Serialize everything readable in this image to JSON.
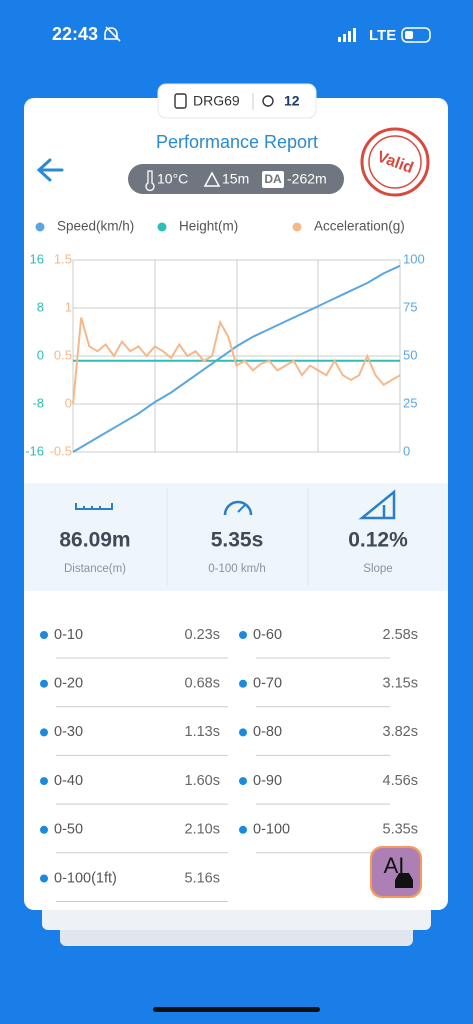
{
  "status": {
    "time": "22:43",
    "network": "LTE"
  },
  "header": {
    "device": "DRG69",
    "satellites": "12",
    "title": "Performance Report",
    "stamp": "Valid",
    "temperature": "10°C",
    "altitude": "15m",
    "da_label": "DA",
    "density_altitude": "-262m"
  },
  "chart_data": {
    "type": "line",
    "series": [
      {
        "name": "Speed(km/h)",
        "color": "#5aa7e0",
        "axis": "y2",
        "values": [
          0,
          5,
          10,
          15,
          20,
          26,
          31,
          37,
          43,
          49,
          55,
          60,
          64,
          68,
          72,
          76,
          80,
          84,
          88,
          93,
          97
        ]
      },
      {
        "name": "Height(m)",
        "color": "#2bbfb7",
        "axis": "y",
        "values": [
          -0.8,
          -0.8,
          -0.8,
          -0.8,
          -0.8,
          -0.8,
          -0.8,
          -0.8,
          -0.8,
          -0.8,
          -0.8,
          -0.8,
          -0.8,
          -0.8,
          -0.8,
          -0.8,
          -0.8,
          -0.8,
          -0.8,
          -0.8,
          -0.8
        ]
      },
      {
        "name": "Acceleration(g)",
        "color": "#f5b88a",
        "axis": "y3",
        "values": [
          0,
          0.9,
          0.6,
          0.55,
          0.62,
          0.5,
          0.65,
          0.55,
          0.6,
          0.5,
          0.6,
          0.55,
          0.48,
          0.62,
          0.5,
          0.55,
          0.45,
          0.5,
          0.85,
          0.7,
          0.4,
          0.45,
          0.35,
          0.42,
          0.45,
          0.35,
          0.4,
          0.45,
          0.3,
          0.4,
          0.35,
          0.3,
          0.45,
          0.3,
          0.25,
          0.3,
          0.5,
          0.3,
          0.2,
          0.25,
          0.3
        ]
      }
    ],
    "ylim": [
      -16,
      16
    ],
    "yticks": [
      -16,
      -8,
      0,
      8,
      16
    ],
    "y3lim": [
      -0.5,
      1.5
    ],
    "y3ticks": [
      -0.5,
      0,
      0.5,
      1,
      1.5
    ],
    "y2lim": [
      0,
      100
    ],
    "y2ticks": [
      0,
      25,
      50,
      75,
      100
    ],
    "grid": true
  },
  "stats": [
    {
      "value": "86.09m",
      "label": "Distance(m)"
    },
    {
      "value": "5.35s",
      "label": "0-100 km/h"
    },
    {
      "value": "0.12%",
      "label": "Slope"
    }
  ],
  "times": {
    "left": [
      {
        "range": "0-10",
        "time": "0.23s"
      },
      {
        "range": "0-20",
        "time": "0.68s"
      },
      {
        "range": "0-30",
        "time": "1.13s"
      },
      {
        "range": "0-40",
        "time": "1.60s"
      },
      {
        "range": "0-50",
        "time": "2.10s"
      },
      {
        "range": "0-100(1ft)",
        "time": "5.16s"
      }
    ],
    "right": [
      {
        "range": "0-60",
        "time": "2.58s"
      },
      {
        "range": "0-70",
        "time": "3.15s"
      },
      {
        "range": "0-80",
        "time": "3.82s"
      },
      {
        "range": "0-90",
        "time": "4.56s"
      },
      {
        "range": "0-100",
        "time": "5.35s"
      }
    ]
  },
  "ai_button": "AI"
}
